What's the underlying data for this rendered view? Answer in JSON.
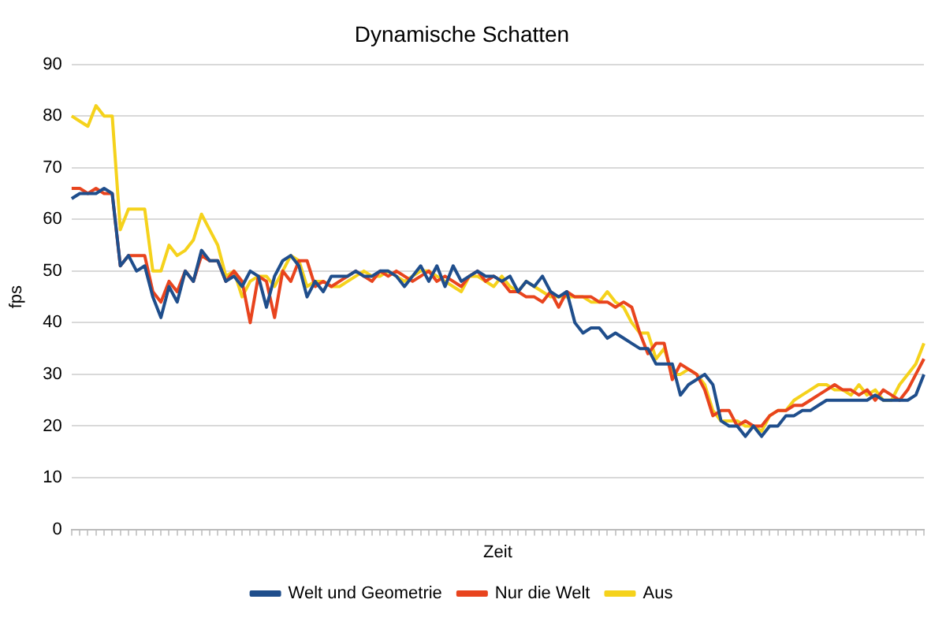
{
  "chart_data": {
    "type": "line",
    "title": "Dynamische Schatten",
    "xlabel": "Zeit",
    "ylabel": "fps",
    "categories": [
      null,
      null,
      null,
      null,
      null,
      null,
      null,
      null,
      null,
      null,
      null,
      null,
      null,
      null,
      null,
      null,
      null,
      null,
      null,
      null,
      null,
      null,
      null,
      null,
      null,
      null,
      null,
      null,
      null,
      null,
      null,
      null,
      null,
      null,
      null,
      null,
      null,
      null,
      null,
      null,
      null,
      null,
      null,
      null,
      null,
      null,
      null,
      null,
      null,
      null,
      null,
      null,
      null,
      null,
      null,
      null,
      null,
      null,
      null,
      null,
      null,
      null,
      null,
      null,
      null,
      null,
      null,
      null,
      null,
      null,
      null,
      null,
      null,
      null,
      null,
      null,
      null,
      null,
      null,
      null,
      null,
      null,
      null,
      null,
      null,
      null,
      null,
      null,
      null,
      null,
      null,
      null,
      null,
      null,
      null,
      null,
      null,
      null,
      null,
      null,
      null,
      null,
      null,
      null,
      null,
      null
    ],
    "ylim": [
      0,
      90
    ],
    "yticks": [
      0,
      10,
      20,
      30,
      40,
      50,
      60,
      70,
      80,
      90
    ],
    "grid": "y",
    "legend": "bottom",
    "tick_labels": "y",
    "marker": "none",
    "series": [
      {
        "name": "Welt und Geometrie",
        "color": "#1f4e8c",
        "values": [
          64,
          65,
          65,
          65,
          66,
          65,
          51,
          53,
          50,
          51,
          45,
          41,
          47,
          44,
          50,
          48,
          54,
          52,
          52,
          48,
          49,
          47,
          50,
          49,
          43,
          49,
          52,
          53,
          51,
          45,
          48,
          46,
          49,
          49,
          49,
          50,
          49,
          49,
          50,
          50,
          49,
          47,
          49,
          51,
          48,
          51,
          47,
          51,
          48,
          49,
          50,
          49,
          49,
          48,
          49,
          46,
          48,
          47,
          49,
          46,
          45,
          46,
          40,
          38,
          39,
          39,
          37,
          38,
          37,
          36,
          35,
          35,
          32,
          32,
          32,
          26,
          28,
          29,
          30,
          28,
          21,
          20,
          20,
          18,
          20,
          18,
          20,
          20,
          22,
          22,
          23,
          23,
          24,
          25,
          25,
          25,
          25,
          25,
          25,
          26,
          25,
          25,
          25,
          25,
          26,
          30
        ]
      },
      {
        "name": "Nur die Welt",
        "color": "#e8441e",
        "values": [
          66,
          66,
          65,
          66,
          65,
          65,
          51,
          53,
          53,
          53,
          46,
          44,
          48,
          46,
          50,
          48,
          53,
          52,
          52,
          48,
          50,
          48,
          40,
          49,
          48,
          41,
          50,
          48,
          52,
          52,
          47,
          48,
          47,
          48,
          49,
          50,
          49,
          48,
          50,
          49,
          50,
          49,
          48,
          49,
          50,
          48,
          49,
          48,
          47,
          49,
          50,
          48,
          49,
          48,
          46,
          46,
          45,
          45,
          44,
          46,
          43,
          46,
          45,
          45,
          45,
          44,
          44,
          43,
          44,
          43,
          38,
          34,
          36,
          36,
          29,
          32,
          31,
          30,
          27,
          22,
          23,
          23,
          20,
          21,
          20,
          20,
          22,
          23,
          23,
          24,
          24,
          25,
          26,
          27,
          28,
          27,
          27,
          26,
          27,
          25,
          27,
          26,
          25,
          27,
          30,
          33
        ]
      },
      {
        "name": "Aus",
        "color": "#f5d21c",
        "values": [
          80,
          79,
          78,
          82,
          80,
          80,
          58,
          62,
          62,
          62,
          50,
          50,
          55,
          53,
          54,
          56,
          61,
          58,
          55,
          49,
          50,
          45,
          48,
          49,
          49,
          47,
          50,
          53,
          52,
          47,
          48,
          48,
          47,
          47,
          48,
          49,
          50,
          49,
          49,
          50,
          49,
          48,
          49,
          50,
          50,
          49,
          48,
          47,
          46,
          49,
          49,
          48,
          47,
          49,
          47,
          46,
          48,
          47,
          46,
          45,
          45,
          45,
          45,
          45,
          44,
          44,
          46,
          44,
          43,
          40,
          38,
          38,
          33,
          35,
          30,
          30,
          31,
          30,
          28,
          23,
          21,
          21,
          21,
          20,
          20,
          19,
          22,
          23,
          23,
          25,
          26,
          27,
          28,
          28,
          27,
          27,
          26,
          28,
          26,
          27,
          25,
          25,
          28,
          30,
          32,
          36
        ]
      }
    ]
  }
}
